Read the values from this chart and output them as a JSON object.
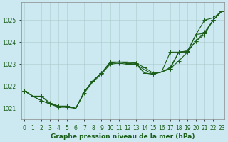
{
  "x": [
    0,
    1,
    2,
    3,
    4,
    5,
    6,
    7,
    8,
    9,
    10,
    11,
    12,
    13,
    14,
    15,
    16,
    17,
    18,
    19,
    20,
    21,
    22,
    23
  ],
  "lines": [
    [
      1021.8,
      1021.55,
      1021.55,
      1021.25,
      1021.1,
      1021.1,
      1021.0,
      1021.75,
      1022.25,
      1022.6,
      1023.1,
      1023.1,
      1023.1,
      1023.05,
      1022.85,
      1022.6,
      1022.65,
      1022.85,
      1023.55,
      1023.6,
      1024.35,
      1024.4,
      1025.0,
      1025.4
    ],
    [
      1021.8,
      1021.55,
      1021.55,
      1021.2,
      1021.1,
      1021.1,
      1021.0,
      1021.75,
      1022.25,
      1022.6,
      1023.05,
      1023.1,
      1023.05,
      1023.05,
      1022.6,
      1022.55,
      1022.65,
      1022.8,
      1023.15,
      1023.55,
      1024.05,
      1024.45,
      1025.0,
      1025.4
    ],
    [
      1021.8,
      1021.55,
      1021.35,
      1021.2,
      1021.05,
      1021.05,
      1021.0,
      1021.7,
      1022.2,
      1022.55,
      1023.0,
      1023.05,
      1023.0,
      1023.0,
      1022.6,
      1022.55,
      1022.65,
      1022.8,
      1023.55,
      1023.55,
      1024.35,
      1025.0,
      1025.1,
      1025.4
    ],
    [
      1021.8,
      1021.55,
      1021.35,
      1021.2,
      1021.1,
      1021.1,
      1021.0,
      1021.75,
      1022.25,
      1022.6,
      1023.05,
      1023.1,
      1023.05,
      1023.0,
      1022.75,
      1022.55,
      1022.65,
      1023.55,
      1023.55,
      1023.6,
      1024.05,
      1024.35,
      1025.0,
      1025.4
    ]
  ],
  "bg_color": "#cce8f0",
  "grid_color": "#aacccc",
  "line_color": "#1a5e1a",
  "marker": "+",
  "markersize": 4,
  "linewidth": 0.8,
  "title": "Graphe pression niveau de la mer (hPa)",
  "title_color": "#1a5e1a",
  "xlabel_ticks": [
    "0",
    "1",
    "2",
    "3",
    "4",
    "5",
    "6",
    "7",
    "8",
    "9",
    "10",
    "11",
    "12",
    "13",
    "14",
    "15",
    "16",
    "17",
    "18",
    "19",
    "20",
    "21",
    "22",
    "23"
  ],
  "yticks": [
    1021,
    1022,
    1023,
    1024,
    1025
  ],
  "ylim": [
    1020.5,
    1025.8
  ],
  "xlim": [
    -0.3,
    23.3
  ],
  "tick_color": "#1a5e1a",
  "tick_fontsize": 5.5,
  "title_fontsize": 6.5,
  "figsize": [
    3.2,
    2.0
  ],
  "dpi": 100
}
